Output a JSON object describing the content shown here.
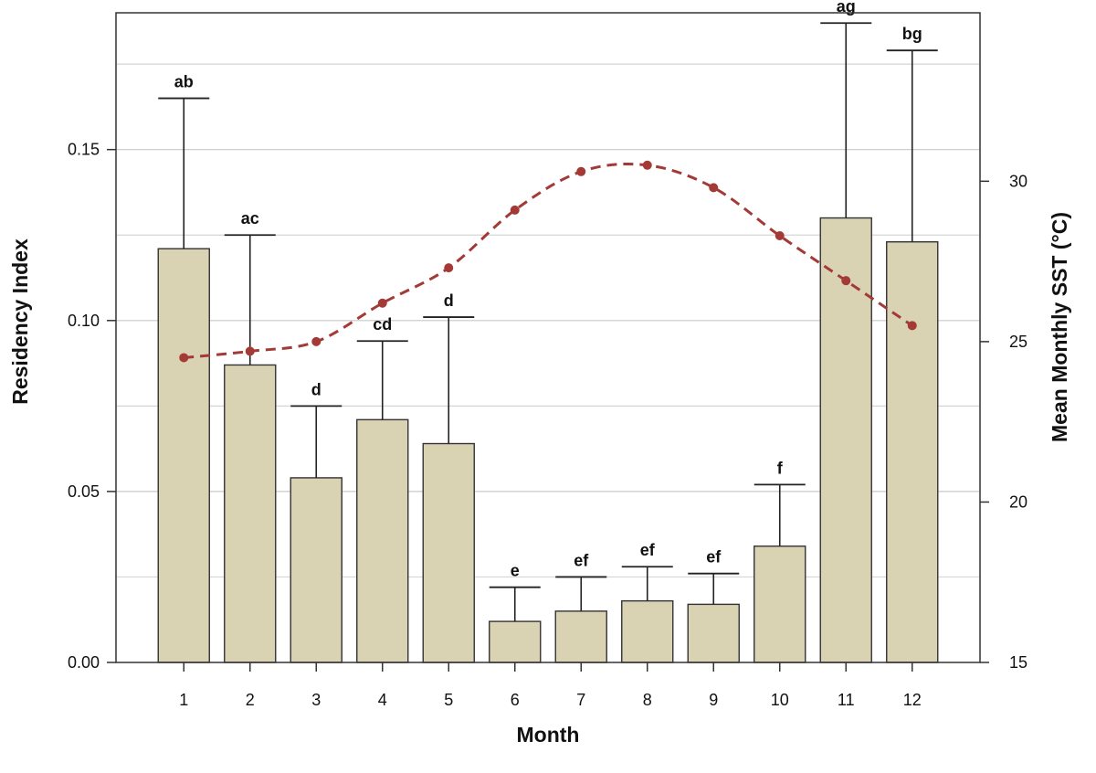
{
  "chart_data": {
    "type": "bar",
    "xlabel": "Month",
    "ylabel": "Residency Index",
    "y2label": "Mean Monthly SST (°C)",
    "categories": [
      "1",
      "2",
      "3",
      "4",
      "5",
      "6",
      "7",
      "8",
      "9",
      "10",
      "11",
      "12"
    ],
    "ylim": [
      0,
      0.19
    ],
    "y2lim": [
      15,
      35.25
    ],
    "yticks": [
      "0.00",
      "0.05",
      "0.10",
      "0.15"
    ],
    "y2ticks": [
      "15",
      "20",
      "25",
      "30"
    ],
    "grid": true,
    "series": [
      {
        "name": "Residency Index",
        "kind": "bar",
        "color": "#d9d3b4",
        "values": [
          0.121,
          0.087,
          0.054,
          0.071,
          0.064,
          0.012,
          0.015,
          0.018,
          0.017,
          0.034,
          0.13,
          0.123
        ],
        "error_upper": [
          0.165,
          0.125,
          0.075,
          0.094,
          0.101,
          0.022,
          0.025,
          0.028,
          0.026,
          0.052,
          0.187,
          0.179
        ],
        "labels": [
          "ab",
          "ac",
          "d",
          "cd",
          "d",
          "e",
          "ef",
          "ef",
          "ef",
          "f",
          "ag",
          "bg"
        ]
      },
      {
        "name": "Mean Monthly SST",
        "kind": "line",
        "axis": "right",
        "color": "#a33a36",
        "style": "dashed",
        "values": [
          24.5,
          24.7,
          25.0,
          26.2,
          27.3,
          29.1,
          30.3,
          30.5,
          29.8,
          28.3,
          26.9,
          25.5
        ]
      }
    ]
  }
}
